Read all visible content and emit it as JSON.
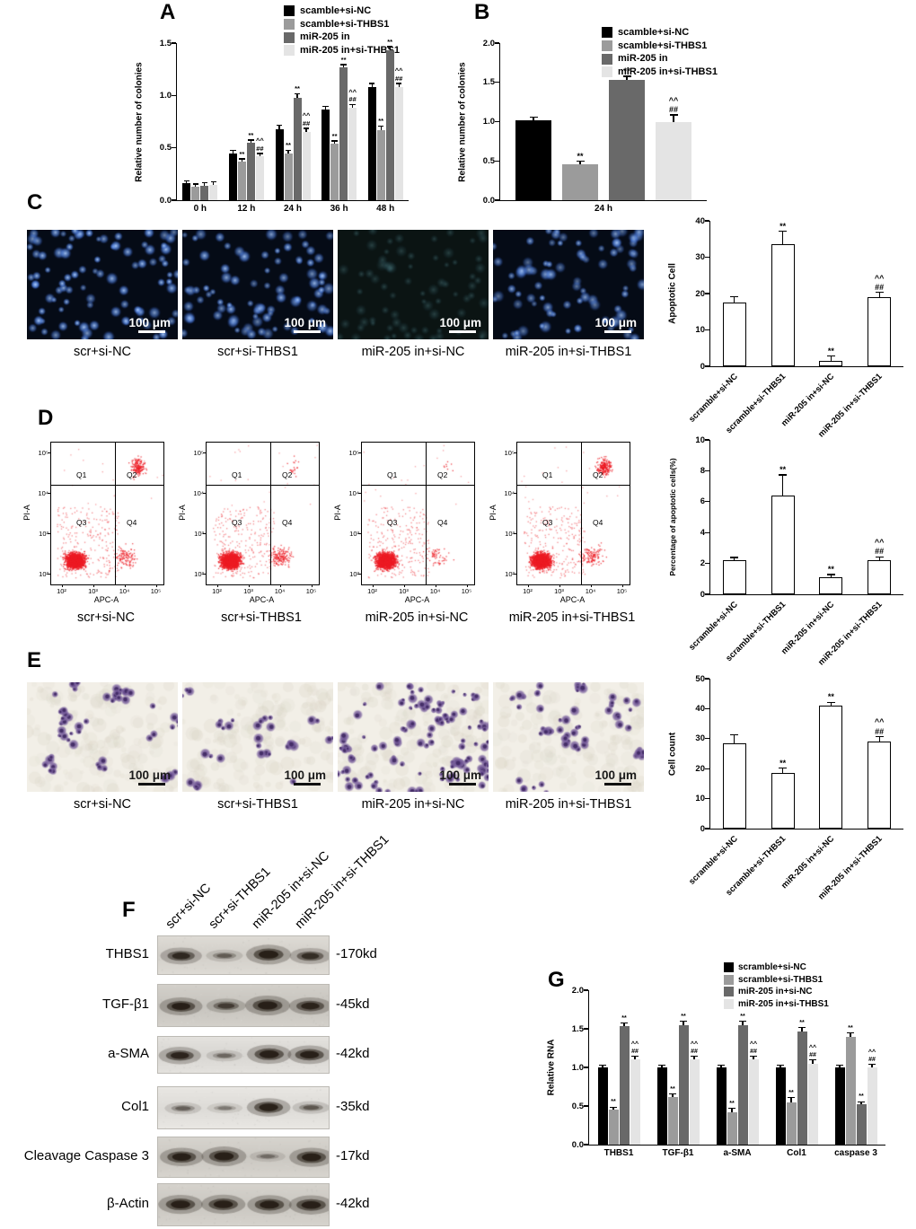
{
  "colors": {
    "series": [
      "#000000",
      "#9b9b9b",
      "#696969",
      "#e4e4e4"
    ],
    "flow_dots": "#ed1c24",
    "fluorescence": "#5f8fe8",
    "crystal_violet": "#6a4f96",
    "axis": "#000000"
  },
  "panelA": {
    "label": "A",
    "legend": [
      "scamble+si-NC",
      "scamble+si-THBS1",
      "miR-205 in",
      "miR-205 in+si-THBS1"
    ],
    "chart": {
      "type": "bar",
      "ylabel": "Relative number of colonies",
      "ylim": [
        0,
        1.5
      ],
      "yticks": [
        "0.0",
        "0.5",
        "1.0",
        "1.5"
      ],
      "categories": [
        "0 h",
        "12 h",
        "24 h",
        "36 h",
        "48 h"
      ],
      "series": [
        {
          "name": "scamble+si-NC",
          "color": "#000000",
          "values": [
            0.16,
            0.45,
            0.68,
            0.87,
            1.08
          ],
          "err": [
            0.02,
            0.02,
            0.03,
            0.02,
            0.03
          ],
          "ann": [
            "",
            "",
            "",
            "",
            ""
          ]
        },
        {
          "name": "scamble+si-THBS1",
          "color": "#9b9b9b",
          "values": [
            0.13,
            0.37,
            0.45,
            0.54,
            0.67
          ],
          "err": [
            0.02,
            0.02,
            0.02,
            0.02,
            0.03
          ],
          "ann": [
            "",
            "**",
            "**",
            "**",
            "**"
          ]
        },
        {
          "name": "miR-205 in",
          "color": "#696969",
          "values": [
            0.14,
            0.55,
            0.98,
            1.27,
            1.43
          ],
          "err": [
            0.02,
            0.02,
            0.03,
            0.02,
            0.03
          ],
          "ann": [
            "",
            "**",
            "**",
            "**",
            "**"
          ]
        },
        {
          "name": "miR-205 in+si-THBS1",
          "color": "#e4e4e4",
          "values": [
            0.15,
            0.42,
            0.65,
            0.88,
            1.08
          ],
          "err": [
            0.02,
            0.02,
            0.03,
            0.03,
            0.03
          ],
          "ann": [
            "",
            "^^\n##",
            "^^\n##",
            "^^\n##",
            "^^\n##"
          ]
        }
      ]
    }
  },
  "panelB": {
    "label": "B",
    "legend": [
      "scamble+si-NC",
      "scamble+si-THBS1",
      "miR-205 in",
      "miR-205 in+si-THBS1"
    ],
    "chart": {
      "type": "bar",
      "ylabel": "Relative number of colonies",
      "ylim": [
        0,
        2.0
      ],
      "yticks": [
        "0.0",
        "0.5",
        "1.0",
        "1.5",
        "2.0"
      ],
      "categories": [
        "24 h"
      ],
      "series": [
        {
          "name": "scamble+si-NC",
          "color": "#000000",
          "values": [
            1.02
          ],
          "err": [
            0.03
          ],
          "ann": [
            ""
          ]
        },
        {
          "name": "scamble+si-THBS1",
          "color": "#9b9b9b",
          "values": [
            0.46
          ],
          "err": [
            0.03
          ],
          "ann": [
            "**"
          ]
        },
        {
          "name": "miR-205 in",
          "color": "#696969",
          "values": [
            1.53
          ],
          "err": [
            0.04
          ],
          "ann": [
            "**"
          ]
        },
        {
          "name": "miR-205 in+si-THBS1",
          "color": "#e4e4e4",
          "values": [
            1.0
          ],
          "err": [
            0.08
          ],
          "ann": [
            "^^\n##"
          ]
        }
      ]
    }
  },
  "panelC": {
    "label": "C",
    "images": [
      {
        "caption": "scr+si-NC",
        "scale_label": "100 μm",
        "cells": 90,
        "brightness": 1.0
      },
      {
        "caption": "scr+si-THBS1",
        "scale_label": "100 μm",
        "cells": 85,
        "brightness": 0.95
      },
      {
        "caption": "miR-205 in+si-NC",
        "scale_label": "100 μm",
        "cells": 75,
        "brightness": 0.28
      },
      {
        "caption": "miR-205 in+si-THBS1",
        "scale_label": "100 μm",
        "cells": 85,
        "brightness": 0.85
      }
    ],
    "chart": {
      "type": "bar",
      "ylabel": "Apoptotic Cell",
      "ylim": [
        0,
        40
      ],
      "yticks": [
        "0",
        "10",
        "20",
        "30",
        "40"
      ],
      "categories": [
        "scramble+si-NC",
        "scramble+si-THBS1",
        "miR-205 in+si-NC",
        "miR-205 in+si-THBS1"
      ],
      "series": [
        {
          "name": "apoptotic-cells",
          "fill": "open",
          "values": [
            17.5,
            33.5,
            1.5,
            19
          ],
          "err": [
            1.5,
            3.5,
            1.2,
            1.2
          ],
          "ann": [
            "",
            "**",
            "**",
            "^^\n##"
          ]
        }
      ]
    }
  },
  "panelD": {
    "label": "D",
    "flow": {
      "ylabel": "PI-A",
      "xlabel": "APC-A",
      "ticks": [
        "10²",
        "10³",
        "10⁴",
        "10⁵"
      ],
      "quadrants": [
        "Q1",
        "Q2",
        "Q3",
        "Q4"
      ],
      "plots": [
        {
          "caption": "scr+si-NC",
          "q2_cluster": 170,
          "q4_scatter": 120
        },
        {
          "caption": "scr+si-THBS1",
          "q2_cluster": 20,
          "q4_scatter": 170
        },
        {
          "caption": "miR-205 in+si-NC",
          "q2_cluster": 8,
          "q4_scatter": 60
        },
        {
          "caption": "miR-205 in+si-THBS1",
          "q2_cluster": 210,
          "q4_scatter": 140
        }
      ]
    },
    "chart": {
      "type": "bar",
      "ylabel": "Percentage of apoptotic cells(%)",
      "ylim": [
        0,
        10
      ],
      "yticks": [
        "0",
        "2",
        "4",
        "6",
        "8",
        "10"
      ],
      "categories": [
        "scramble+si-NC",
        "scramble+si-THBS1",
        "miR-205 in+si-NC",
        "miR-205 in+si-THBS1"
      ],
      "series": [
        {
          "name": "apoptotic-percentage",
          "fill": "open",
          "values": [
            2.2,
            6.4,
            1.1,
            2.2
          ],
          "err": [
            0.15,
            1.3,
            0.15,
            0.2
          ],
          "ann": [
            "",
            "**",
            "**",
            "^^\n##"
          ]
        }
      ]
    }
  },
  "panelE": {
    "label": "E",
    "images": [
      {
        "caption": "scr+si-NC",
        "scale_label": "100 μm",
        "cells": 60
      },
      {
        "caption": "scr+si-THBS1",
        "scale_label": "100 μm",
        "cells": 36
      },
      {
        "caption": "miR-205 in+si-NC",
        "scale_label": "100 μm",
        "cells": 125
      },
      {
        "caption": "miR-205 in+si-THBS1",
        "scale_label": "100 μm",
        "cells": 62
      }
    ],
    "chart": {
      "type": "bar",
      "ylabel": "Cell count",
      "ylim": [
        0,
        50
      ],
      "yticks": [
        "0",
        "10",
        "20",
        "30",
        "40",
        "50"
      ],
      "categories": [
        "scramble+si-NC",
        "scramble+si-THBS1",
        "miR-205 in+si-NC",
        "miR-205 in+si-THBS1"
      ],
      "series": [
        {
          "name": "cell-count",
          "fill": "open",
          "values": [
            28.5,
            18.5,
            41,
            29
          ],
          "err": [
            2.5,
            1.5,
            1.0,
            1.5
          ],
          "ann": [
            "",
            "**",
            "**",
            "^^\n##"
          ]
        }
      ]
    }
  },
  "panelF": {
    "label": "F",
    "lane_labels": [
      "scr+si-NC",
      "scr+si-THBS1",
      "miR-205 in+si-NC",
      "miR-205 in+si-THBS1"
    ],
    "rows": [
      {
        "name": "THBS1",
        "size": "-170kd",
        "bands": [
          0.75,
          0.35,
          1.0,
          0.7
        ]
      },
      {
        "name": "TGF-β1",
        "size": "-45kd",
        "bands": [
          0.85,
          0.55,
          1.0,
          0.8
        ]
      },
      {
        "name": "a-SMA",
        "size": "-42kd",
        "bands": [
          0.8,
          0.3,
          0.95,
          0.9
        ]
      },
      {
        "name": "Col1",
        "size": "-35kd",
        "bands": [
          0.35,
          0.22,
          0.9,
          0.4
        ]
      },
      {
        "name": "Cleavage Caspase 3",
        "size": "-17kd",
        "bands": [
          0.9,
          1.0,
          0.25,
          0.95
        ]
      },
      {
        "name": "β-Actin",
        "size": "-42kd",
        "bands": [
          0.95,
          0.95,
          0.95,
          0.95
        ]
      }
    ]
  },
  "panelG": {
    "label": "G",
    "legend": [
      "scramble+si-NC",
      "scramble+si-THBS1",
      "miR-205 in+si-NC",
      "miR-205 in+si-THBS1"
    ],
    "chart": {
      "type": "bar",
      "ylabel": "Relative RNA",
      "ylim": [
        0,
        2.0
      ],
      "yticks": [
        "0.0",
        "0.5",
        "1.0",
        "1.5",
        "2.0"
      ],
      "categories": [
        "THBS1",
        "TGF-β1",
        "a-SMA",
        "Col1",
        "caspase 3"
      ],
      "series": [
        {
          "name": "scramble+si-NC",
          "color": "#000000",
          "values": [
            1.0,
            1.0,
            1.0,
            1.0,
            1.0
          ],
          "err": [
            0.02,
            0.02,
            0.02,
            0.02,
            0.02
          ],
          "ann": [
            "",
            "",
            "",
            "",
            ""
          ]
        },
        {
          "name": "scramble+si-THBS1",
          "color": "#9b9b9b",
          "values": [
            0.45,
            0.62,
            0.42,
            0.55,
            1.4
          ],
          "err": [
            0.03,
            0.03,
            0.04,
            0.05,
            0.04
          ],
          "ann": [
            "**",
            "**",
            "**",
            "**",
            "**"
          ]
        },
        {
          "name": "miR-205 in+si-NC",
          "color": "#696969",
          "values": [
            1.53,
            1.55,
            1.55,
            1.47,
            0.52
          ],
          "err": [
            0.04,
            0.04,
            0.04,
            0.04,
            0.03
          ],
          "ann": [
            "**",
            "**",
            "**",
            "**",
            "**"
          ]
        },
        {
          "name": "miR-205 in+si-THBS1",
          "color": "#e4e4e4",
          "values": [
            1.1,
            1.1,
            1.1,
            1.05,
            1.0
          ],
          "err": [
            0.04,
            0.04,
            0.04,
            0.04,
            0.03
          ],
          "ann": [
            "^^\n##",
            "^^\n##",
            "^^\n##",
            "^^\n##",
            "^^\n##"
          ]
        }
      ]
    }
  }
}
